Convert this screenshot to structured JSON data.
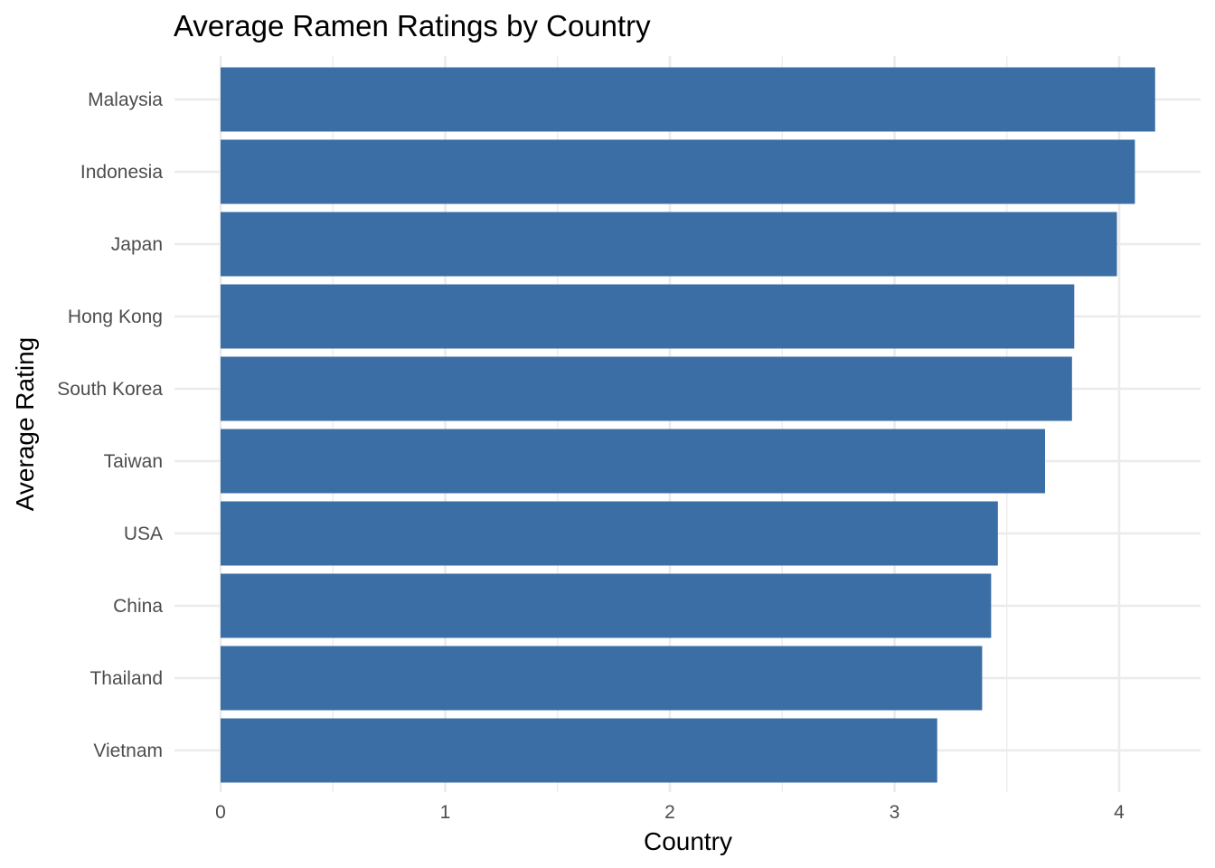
{
  "chart_data": {
    "type": "bar",
    "orientation": "horizontal",
    "title": "Average Ramen Ratings by Country",
    "xlabel": "Country",
    "ylabel": "Average Rating",
    "categories": [
      "Malaysia",
      "Indonesia",
      "Japan",
      "Hong Kong",
      "South Korea",
      "Taiwan",
      "USA",
      "China",
      "Thailand",
      "Vietnam"
    ],
    "values": [
      4.16,
      4.07,
      3.99,
      3.8,
      3.79,
      3.67,
      3.46,
      3.43,
      3.39,
      3.19
    ],
    "xlim": [
      0,
      4.37
    ],
    "x_ticks": [
      0,
      1,
      2,
      3,
      4
    ],
    "bar_color": "#3A6EA5",
    "grid": true,
    "legend": "none"
  }
}
